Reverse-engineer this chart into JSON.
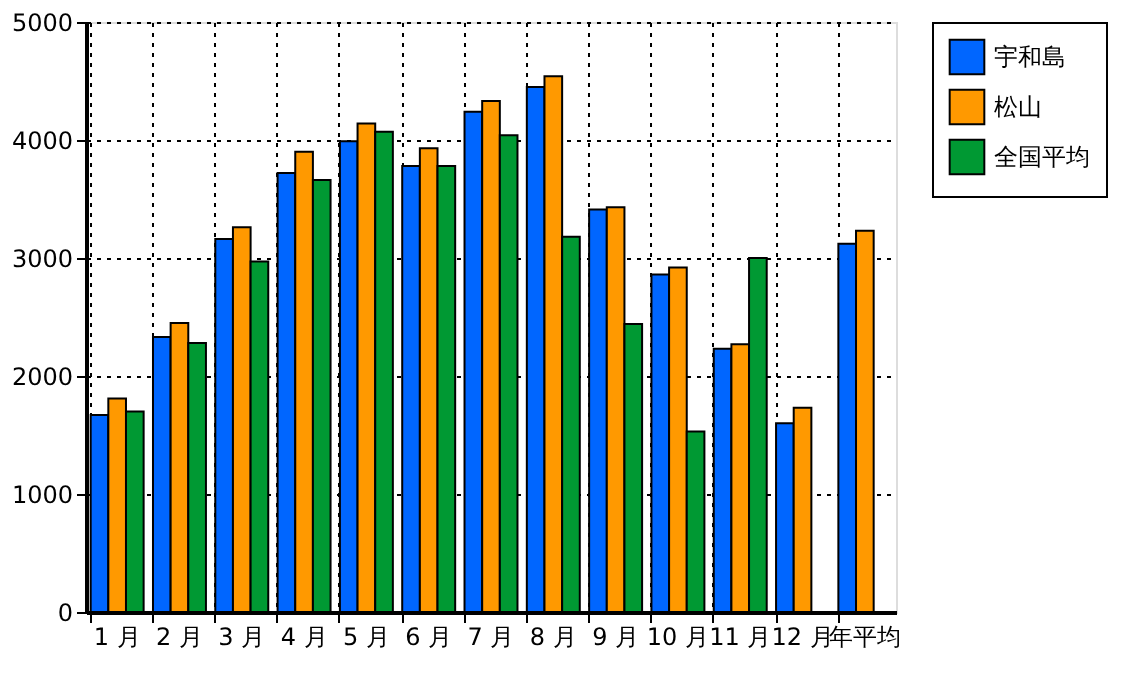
{
  "chart_data": {
    "type": "bar",
    "categories": [
      "1 月",
      "2 月",
      "3 月",
      "4 月",
      "5 月",
      "6 月",
      "7 月",
      "8 月",
      "9 月",
      "10 月",
      "11 月",
      "12 月",
      "年平均"
    ],
    "series": [
      {
        "name": "宇和島",
        "color": "#0066ff",
        "values": [
          1670,
          2330,
          3160,
          3720,
          3990,
          3780,
          4240,
          4450,
          3410,
          2860,
          2230,
          1600,
          3120
        ]
      },
      {
        "name": "松山",
        "color": "#ff9900",
        "values": [
          1810,
          2450,
          3260,
          3900,
          4140,
          3930,
          4330,
          4540,
          3430,
          2920,
          2270,
          1730,
          3230
        ]
      },
      {
        "name": "全国平均",
        "color": "#009933",
        "values": [
          1700,
          2280,
          2970,
          3660,
          4070,
          3780,
          4040,
          3180,
          2440,
          1530,
          3000,
          null,
          null
        ]
      }
    ],
    "ylim": [
      0,
      5000
    ],
    "yticks": [
      0,
      1000,
      2000,
      3000,
      4000,
      5000
    ],
    "grid": true,
    "legend": "top right"
  }
}
